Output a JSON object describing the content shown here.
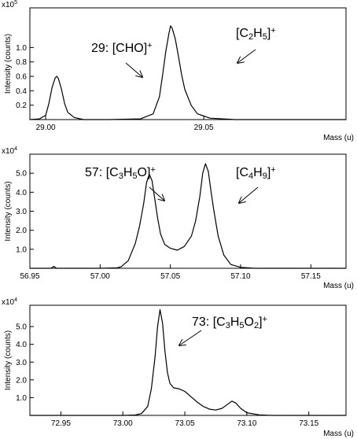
{
  "chart_data": [
    {
      "type": "line",
      "xlabel": "Mass (u)",
      "ylabel": "Intensity (counts)",
      "y_exponent": "x10",
      "y_exponent_power": "5",
      "xlim": [
        28.995,
        29.095
      ],
      "ylim": [
        0,
        1.55
      ],
      "x_ticks": [
        29.0,
        29.05
      ],
      "x_tick_labels": [
        "29.00",
        "29.05"
      ],
      "y_ticks": [
        0.2,
        0.4,
        0.6,
        0.8,
        1.0
      ],
      "y_tick_labels": [
        "0.2",
        "0.4",
        "0.6",
        "0.8",
        "1.0"
      ],
      "series": [
        {
          "x": [
            28.995,
            28.998,
            29.0,
            29.001,
            29.002,
            29.003,
            29.0035,
            29.004,
            29.005,
            29.006,
            29.007,
            29.009,
            29.012,
            29.02,
            29.03,
            29.034,
            29.036,
            29.037,
            29.038,
            29.039,
            29.0395,
            29.04,
            29.041,
            29.042,
            29.043,
            29.044,
            29.046,
            29.048,
            29.052,
            29.06,
            29.07,
            29.08,
            29.095
          ],
          "y": [
            0.0,
            0.01,
            0.06,
            0.22,
            0.44,
            0.58,
            0.6,
            0.57,
            0.42,
            0.22,
            0.1,
            0.03,
            0.0,
            0.0,
            0.01,
            0.08,
            0.32,
            0.62,
            0.95,
            1.2,
            1.3,
            1.27,
            1.12,
            0.88,
            0.62,
            0.42,
            0.2,
            0.08,
            0.02,
            0.0,
            0.0,
            0.0,
            0.0
          ]
        }
      ],
      "annotations": [
        {
          "prefix": "29: [CHO]",
          "parts": [
            {
              "t": "+",
              "k": "sup"
            }
          ]
        },
        {
          "prefix": "[C",
          "parts": [
            {
              "t": "2",
              "k": "sub"
            },
            {
              "t": "H",
              "k": "n"
            },
            {
              "t": "5",
              "k": "sub"
            },
            {
              "t": "]",
              "k": "n"
            },
            {
              "t": "+",
              "k": "sup"
            }
          ]
        }
      ]
    },
    {
      "type": "line",
      "xlabel": "Mass (u)",
      "ylabel": "Intensity (counts)",
      "y_exponent": "x10",
      "y_exponent_power": "4",
      "xlim": [
        56.95,
        57.175
      ],
      "ylim": [
        0,
        6.0
      ],
      "x_ticks": [
        56.95,
        57.0,
        57.05,
        57.1,
        57.15
      ],
      "x_tick_labels": [
        "56.95",
        "57.00",
        "57.05",
        "57.10",
        "57.15"
      ],
      "y_ticks": [
        1.0,
        2.0,
        3.0,
        4.0,
        5.0
      ],
      "y_tick_labels": [
        "1.0",
        "2.0",
        "3.0",
        "4.0",
        "5.0"
      ],
      "series": [
        {
          "x": [
            56.95,
            56.965,
            56.967,
            56.969,
            56.98,
            57.0,
            57.012,
            57.015,
            57.02,
            57.025,
            57.028,
            57.031,
            57.033,
            57.035,
            57.037,
            57.039,
            57.041,
            57.043,
            57.046,
            57.05,
            57.055,
            57.06,
            57.065,
            57.068,
            57.071,
            57.073,
            57.075,
            57.077,
            57.079,
            57.081,
            57.084,
            57.088,
            57.093,
            57.1,
            57.11,
            57.13,
            57.15,
            57.175
          ],
          "y": [
            0.0,
            0.0,
            0.1,
            0.0,
            0.0,
            0.0,
            0.02,
            0.08,
            0.4,
            1.3,
            2.2,
            3.4,
            4.5,
            4.95,
            4.6,
            3.6,
            2.6,
            1.8,
            1.25,
            1.05,
            0.95,
            1.15,
            1.7,
            2.5,
            3.8,
            5.0,
            5.5,
            5.1,
            4.0,
            3.0,
            1.7,
            0.7,
            0.2,
            0.05,
            0.0,
            0.0,
            0.0,
            0.0
          ]
        }
      ],
      "annotations": [
        {
          "prefix": "57: [C",
          "parts": [
            {
              "t": "3",
              "k": "sub"
            },
            {
              "t": "H",
              "k": "n"
            },
            {
              "t": "5",
              "k": "sub"
            },
            {
              "t": "O]",
              "k": "n"
            },
            {
              "t": "+",
              "k": "sup"
            }
          ]
        },
        {
          "prefix": "[C",
          "parts": [
            {
              "t": "4",
              "k": "sub"
            },
            {
              "t": "H",
              "k": "n"
            },
            {
              "t": "9",
              "k": "sub"
            },
            {
              "t": "]",
              "k": "n"
            },
            {
              "t": "+",
              "k": "sup"
            }
          ]
        }
      ]
    },
    {
      "type": "line",
      "xlabel": "Mass (u)",
      "ylabel": "Intensity (counts)",
      "y_exponent": "x10",
      "y_exponent_power": "4",
      "xlim": [
        72.925,
        73.18
      ],
      "ylim": [
        0,
        6.2
      ],
      "x_ticks": [
        72.95,
        73.0,
        73.05,
        73.1,
        73.15
      ],
      "x_tick_labels": [
        "72.95",
        "73.00",
        "73.05",
        "73.10",
        "73.15"
      ],
      "y_ticks": [
        1.0,
        2.0,
        3.0,
        4.0,
        5.0
      ],
      "y_tick_labels": [
        "1.0",
        "2.0",
        "3.0",
        "4.0",
        "5.0"
      ],
      "series": [
        {
          "x": [
            72.925,
            73.0,
            73.01,
            73.015,
            73.02,
            73.023,
            73.026,
            73.028,
            73.03,
            73.032,
            73.034,
            73.036,
            73.038,
            73.041,
            73.045,
            73.05,
            73.055,
            73.06,
            73.065,
            73.07,
            73.075,
            73.08,
            73.085,
            73.088,
            73.091,
            73.095,
            73.1,
            73.11,
            73.12,
            73.14,
            73.18
          ],
          "y": [
            0.0,
            0.0,
            0.02,
            0.1,
            0.5,
            1.5,
            3.3,
            5.0,
            5.95,
            5.2,
            3.6,
            2.4,
            1.8,
            1.55,
            1.5,
            1.35,
            1.05,
            0.75,
            0.5,
            0.35,
            0.3,
            0.4,
            0.65,
            0.8,
            0.7,
            0.4,
            0.15,
            0.03,
            0.0,
            0.0,
            0.0
          ]
        }
      ],
      "annotations": [
        {
          "prefix": "73: [C",
          "parts": [
            {
              "t": "3",
              "k": "sub"
            },
            {
              "t": "H",
              "k": "n"
            },
            {
              "t": "5",
              "k": "sub"
            },
            {
              "t": "O",
              "k": "n"
            },
            {
              "t": "2",
              "k": "sub"
            },
            {
              "t": "]",
              "k": "n"
            },
            {
              "t": "+",
              "k": "sup"
            }
          ]
        }
      ]
    }
  ]
}
